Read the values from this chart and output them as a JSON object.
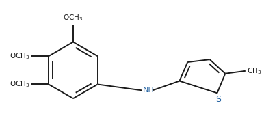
{
  "bg_color": "#ffffff",
  "line_color": "#1a1a1a",
  "text_color": "#1a1a1a",
  "nh_color": "#2060a0",
  "s_color": "#2060a0",
  "line_width": 1.4,
  "font_size": 7.5
}
